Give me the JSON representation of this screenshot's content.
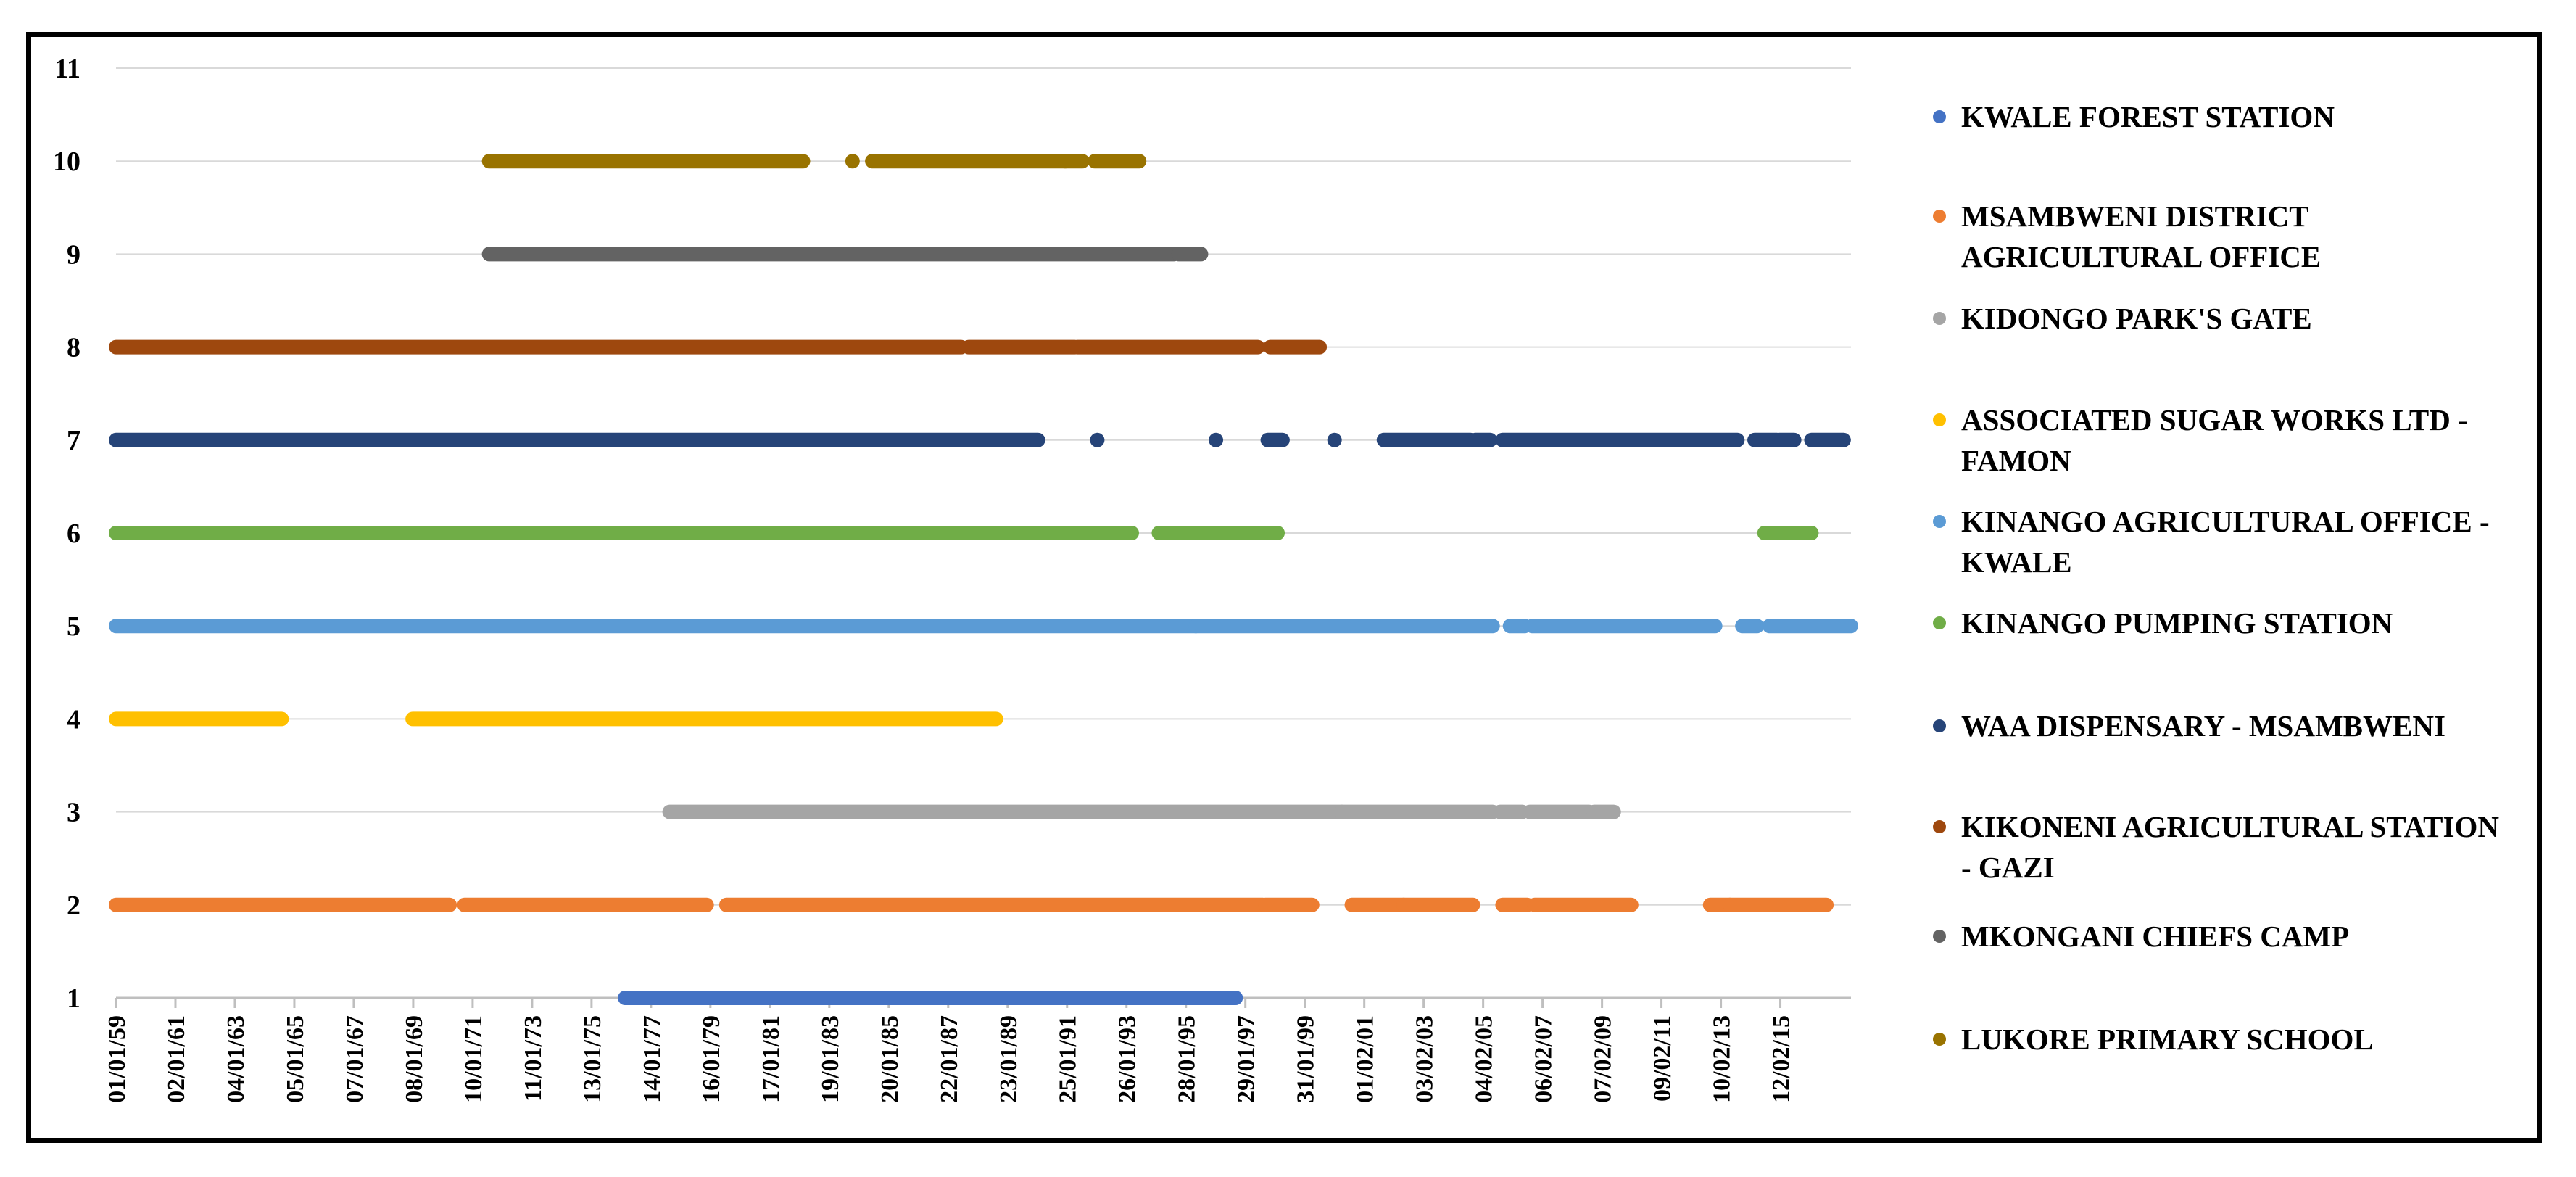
{
  "chart_data": {
    "type": "scatter",
    "title": "",
    "xlabel": "",
    "ylabel": "",
    "grid": true,
    "legend_position": "right",
    "ylim": [
      1,
      11
    ],
    "yticks": [
      1,
      2,
      3,
      4,
      5,
      6,
      7,
      8,
      9,
      10,
      11
    ],
    "xlim": [
      "1959-01-01",
      "2017-07-01"
    ],
    "xticks": [
      {
        "date": "1959-01-01",
        "label": "01/01/59"
      },
      {
        "date": "1961-01-02",
        "label": "02/01/61"
      },
      {
        "date": "1963-01-04",
        "label": "04/01/63"
      },
      {
        "date": "1965-01-05",
        "label": "05/01/65"
      },
      {
        "date": "1967-01-07",
        "label": "07/01/67"
      },
      {
        "date": "1969-01-08",
        "label": "08/01/69"
      },
      {
        "date": "1971-01-10",
        "label": "10/01/71"
      },
      {
        "date": "1973-01-11",
        "label": "11/01/73"
      },
      {
        "date": "1975-01-13",
        "label": "13/01/75"
      },
      {
        "date": "1977-01-14",
        "label": "14/01/77"
      },
      {
        "date": "1979-01-16",
        "label": "16/01/79"
      },
      {
        "date": "1981-01-17",
        "label": "17/01/81"
      },
      {
        "date": "1983-01-19",
        "label": "19/01/83"
      },
      {
        "date": "1985-01-20",
        "label": "20/01/85"
      },
      {
        "date": "1987-01-22",
        "label": "22/01/87"
      },
      {
        "date": "1989-01-23",
        "label": "23/01/89"
      },
      {
        "date": "1991-01-25",
        "label": "25/01/91"
      },
      {
        "date": "1993-01-26",
        "label": "26/01/93"
      },
      {
        "date": "1995-01-28",
        "label": "28/01/95"
      },
      {
        "date": "1997-01-29",
        "label": "29/01/97"
      },
      {
        "date": "1999-01-31",
        "label": "31/01/99"
      },
      {
        "date": "2001-02-01",
        "label": "01/02/01"
      },
      {
        "date": "2003-02-03",
        "label": "03/02/03"
      },
      {
        "date": "2005-02-04",
        "label": "04/02/05"
      },
      {
        "date": "2007-02-06",
        "label": "06/02/07"
      },
      {
        "date": "2009-02-07",
        "label": "07/02/09"
      },
      {
        "date": "2011-02-09",
        "label": "09/02/11"
      },
      {
        "date": "2013-02-10",
        "label": "10/02/13"
      },
      {
        "date": "2015-02-12",
        "label": "12/02/15"
      }
    ],
    "series": [
      {
        "name": "KWALE FOREST STATION",
        "y": 1,
        "color": "#4472C4",
        "segments": [
          [
            "1976-03-01",
            "1996-10-01"
          ]
        ]
      },
      {
        "name": "MSAMBWENI DISTRICT AGRICULTURAL OFFICE",
        "y": 2,
        "color": "#ED7D31",
        "segments": [
          [
            "1959-01-01",
            "1970-04-01"
          ],
          [
            "1970-10-01",
            "1978-12-01"
          ],
          [
            "1979-08-01",
            "1997-09-01"
          ],
          [
            "1997-10-01",
            "1999-05-01"
          ],
          [
            "2000-09-01",
            "2002-06-01"
          ],
          [
            "2002-06-01",
            "2004-10-01"
          ],
          [
            "2005-10-01",
            "2006-08-01"
          ],
          [
            "2006-11-01",
            "2010-02-01"
          ],
          [
            "2012-10-01",
            "2013-06-01"
          ],
          [
            "2013-06-01",
            "2016-09-01"
          ]
        ]
      },
      {
        "name": "KIDONGO PARK'S GATE",
        "y": 3,
        "color": "#A5A5A5",
        "segments": [
          [
            "1977-09-01",
            "2000-05-01"
          ],
          [
            "2000-05-01",
            "2005-06-01"
          ],
          [
            "2005-09-01",
            "2006-06-01"
          ],
          [
            "2006-09-01",
            "2008-09-01"
          ],
          [
            "2008-11-01",
            "2009-07-01"
          ]
        ]
      },
      {
        "name": "ASSOCIATED SUGAR WORKS LTD - FAMON",
        "y": 4,
        "color": "#FFC000",
        "segments": [
          [
            "1959-01-01",
            "1964-08-01"
          ],
          [
            "1969-01-01",
            "1988-09-01"
          ]
        ]
      },
      {
        "name": "KINANGO AGRICULTURAL OFFICE - KWALE",
        "y": 5,
        "color": "#5B9BD5",
        "segments": [
          [
            "1959-01-01",
            "1995-06-01"
          ],
          [
            "1995-06-01",
            "2005-06-01"
          ],
          [
            "2006-01-01",
            "2006-07-01"
          ],
          [
            "2006-10-01",
            "2012-12-01"
          ],
          [
            "2013-11-01",
            "2014-05-01"
          ],
          [
            "2014-10-01",
            "2017-07-01"
          ]
        ]
      },
      {
        "name": "KINANGO PUMPING STATION",
        "y": 6,
        "color": "#70AD47",
        "segments": [
          [
            "1959-01-01",
            "1993-04-01"
          ],
          [
            "1994-03-01",
            "1998-03-01"
          ],
          [
            "2014-08-01",
            "2016-03-01"
          ]
        ]
      },
      {
        "name": "WAA DISPENSARY - MSAMBWENI",
        "y": 7,
        "color": "#264478",
        "segments": [
          [
            "1959-01-01",
            "1990-02-01"
          ],
          [
            "1992-02-01",
            "1992-02-01"
          ],
          [
            "1996-02-01",
            "1996-02-01"
          ],
          [
            "1997-11-01",
            "1998-05-01"
          ],
          [
            "2000-02-01",
            "2000-02-01"
          ],
          [
            "2001-10-01",
            "2004-09-01"
          ],
          [
            "2004-11-01",
            "2005-05-01"
          ],
          [
            "2005-10-01",
            "2013-09-01"
          ],
          [
            "2014-04-01",
            "2015-01-01"
          ],
          [
            "2015-02-01",
            "2015-08-01"
          ],
          [
            "2016-03-01",
            "2017-04-01"
          ]
        ]
      },
      {
        "name": "KIKONENI AGRICULTURAL STATION - GAZI",
        "y": 8,
        "color": "#9E480E",
        "segments": [
          [
            "1959-01-01",
            "1987-07-01"
          ],
          [
            "1987-10-01",
            "1991-05-01"
          ],
          [
            "1991-06-01",
            "1997-07-01"
          ],
          [
            "1997-12-01",
            "1999-08-01"
          ]
        ]
      },
      {
        "name": "MKONGANI CHIEFS CAMP",
        "y": 9,
        "color": "#636363",
        "segments": [
          [
            "1971-08-01",
            "1994-09-01"
          ],
          [
            "1994-11-01",
            "1995-08-01"
          ]
        ]
      },
      {
        "name": "LUKORE PRIMARY SCHOOL",
        "y": 10,
        "color": "#997300",
        "segments": [
          [
            "1971-08-01",
            "1982-03-01"
          ],
          [
            "1983-11-01",
            "1983-11-01"
          ],
          [
            "1984-07-01",
            "1991-01-01"
          ],
          [
            "1991-01-01",
            "1991-08-01"
          ],
          [
            "1992-01-01",
            "1993-07-01"
          ]
        ]
      }
    ]
  }
}
